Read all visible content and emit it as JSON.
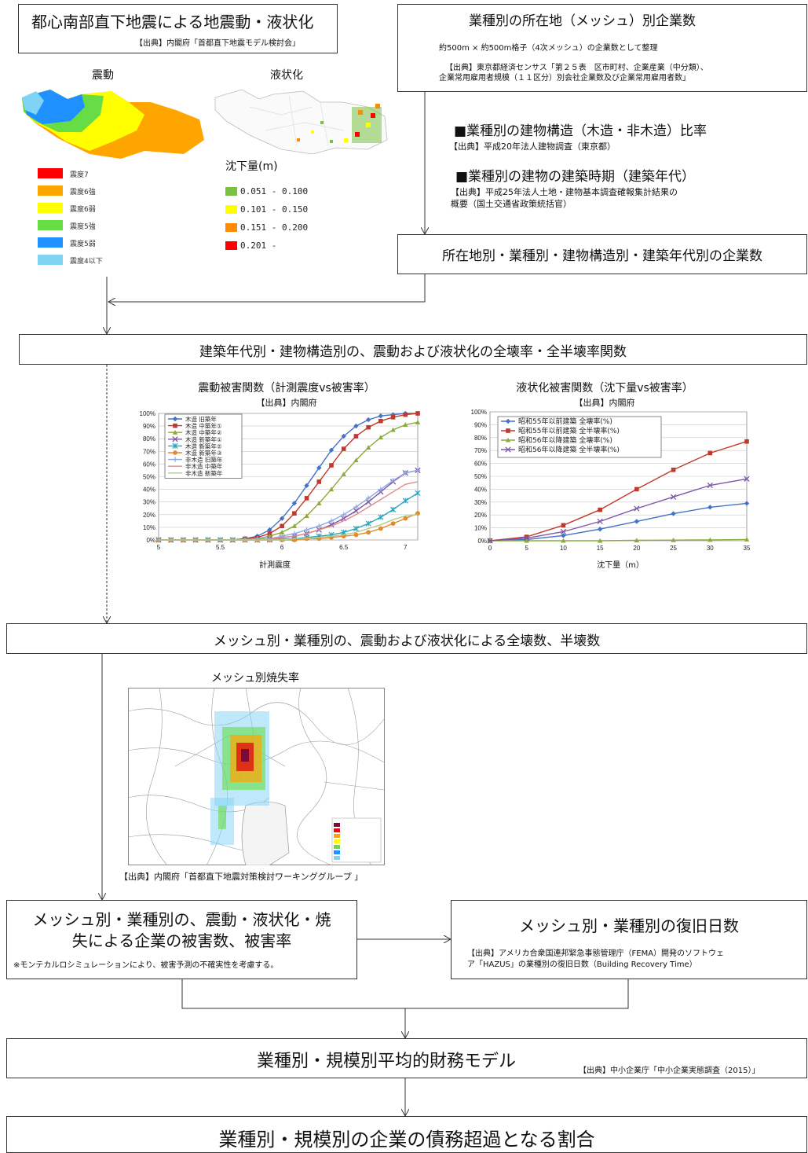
{
  "box1": {
    "title": "都心南部直下地震による地震動・液状化",
    "source": "【出典】内閣府「首都直下地震モデル検討会」"
  },
  "maps": {
    "shaking_label": "震動",
    "liquefaction_label": "液状化",
    "shaking_legend": [
      "震度7",
      "震度6強",
      "震度6弱",
      "震度5強",
      "震度5弱",
      "震度4以下"
    ],
    "shaking_colors": [
      "#ff0000",
      "#ffa500",
      "#ffff00",
      "#66dd44",
      "#1e90ff",
      "#7fd4f5"
    ],
    "liq_title": "沈下量(m)",
    "liq_legend": [
      "0.051 - 0.100",
      "0.101 - 0.150",
      "0.151 - 0.200",
      "0.201 -"
    ],
    "liq_colors": [
      "#7ac143",
      "#ffff00",
      "#ff8c00",
      "#ff0000"
    ]
  },
  "box2": {
    "title": "業種別の所在地（メッシュ）別企業数",
    "line1": "約500m × 約500m格子（4次メッシュ）の企業数として整理",
    "source1": "【出典】東京都経済センサス「第２５表　区市町村、企業産業（中分類）、",
    "source2": "企業常用雇用者規模（１１区分）別会社企業数及び企業常用雇用者数」"
  },
  "notes": {
    "n1_title": "■業種別の建物構造（木造・非木造）比率",
    "n1_source": "【出典】平成20年法人建物調査（東京都）",
    "n2_title": "■業種別の建物の建築時期（建築年代）",
    "n2_source1": "【出典】平成25年法人土地・建物基本調査確報集計結果の",
    "n2_source2": "概要（国土交通省政策統括官）"
  },
  "box3": {
    "title": "所在地別・業種別・建物構造別・建築年代別の企業数"
  },
  "box4": {
    "title": "建築年代別・建物構造別の、震動および液状化の全壊率・全半壊率関数"
  },
  "chart1": {
    "title": "震動被害関数（計測震度vs被害率）",
    "source": "【出典】内閣府",
    "xlabel": "計測震度"
  },
  "chart2": {
    "title": "液状化被害関数（沈下量vs被害率）",
    "source": "【出典】内閣府",
    "xlabel": "沈下量（m）"
  },
  "chart_data": [
    {
      "type": "line",
      "xlim": [
        5,
        7.1
      ],
      "ylim": [
        0,
        100
      ],
      "xticks": [
        5,
        5.5,
        6,
        6.5,
        7
      ],
      "yticks": [
        "0%",
        "10%",
        "20%",
        "30%",
        "40%",
        "50%",
        "60%",
        "70%",
        "80%",
        "90%",
        "100%"
      ],
      "x": [
        5,
        5.1,
        5.2,
        5.3,
        5.4,
        5.5,
        5.6,
        5.7,
        5.8,
        5.9,
        6,
        6.1,
        6.2,
        6.3,
        6.4,
        6.5,
        6.6,
        6.7,
        6.8,
        6.9,
        7,
        7.1
      ],
      "legend": "top-left",
      "series": [
        {
          "name": "木造 旧築年",
          "color": "#4472c4",
          "marker": "diamond",
          "values": [
            0,
            0,
            0,
            0,
            0,
            0,
            0,
            1,
            3,
            8,
            17,
            29,
            43,
            57,
            71,
            82,
            90,
            95,
            98,
            99,
            100,
            100
          ]
        },
        {
          "name": "木造 中築年①",
          "color": "#c0392b",
          "marker": "square",
          "values": [
            0,
            0,
            0,
            0,
            0,
            0,
            0,
            1,
            2,
            5,
            11,
            21,
            33,
            46,
            59,
            72,
            82,
            89,
            94,
            97,
            99,
            100
          ]
        },
        {
          "name": "木造 中築年②",
          "color": "#8aaa3a",
          "marker": "triangle",
          "values": [
            0,
            0,
            0,
            0,
            0,
            0,
            0,
            0,
            1,
            3,
            6,
            11,
            19,
            29,
            40,
            52,
            63,
            73,
            81,
            87,
            91,
            93
          ]
        },
        {
          "name": "木造 新築年①",
          "color": "#7e57a8",
          "marker": "x",
          "values": [
            0,
            0,
            0,
            0,
            0,
            0,
            0,
            0,
            0,
            1,
            2,
            3,
            5,
            8,
            12,
            17,
            23,
            30,
            38,
            46,
            53,
            55
          ]
        },
        {
          "name": "木造 新築年②",
          "color": "#2aa5c0",
          "marker": "star",
          "values": [
            0,
            0,
            0,
            0,
            0,
            0,
            0,
            0,
            0,
            0,
            1,
            1,
            2,
            3,
            4,
            6,
            9,
            13,
            18,
            24,
            31,
            37
          ]
        },
        {
          "name": "木造 新築年③",
          "color": "#e08a2c",
          "marker": "circle",
          "values": [
            0,
            0,
            0,
            0,
            0,
            0,
            0,
            0,
            0,
            0,
            0,
            0,
            1,
            1,
            2,
            3,
            4,
            6,
            9,
            13,
            17,
            21
          ]
        },
        {
          "name": "非木造 旧築年",
          "color": "#8fa8e0",
          "marker": "plus",
          "values": [
            0,
            0,
            0,
            0,
            0,
            0,
            0,
            0,
            1,
            1,
            3,
            5,
            8,
            11,
            15,
            20,
            26,
            33,
            40,
            47,
            53,
            55
          ]
        },
        {
          "name": "非木造 中築年",
          "color": "#e08a8a",
          "marker": "none",
          "values": [
            0,
            0,
            0,
            0,
            0,
            0,
            0,
            0,
            0,
            1,
            2,
            3,
            5,
            8,
            11,
            15,
            20,
            26,
            32,
            38,
            44,
            46
          ]
        },
        {
          "name": "非木造 新築年",
          "color": "#b5c98a",
          "marker": "none",
          "values": [
            0,
            0,
            0,
            0,
            0,
            0,
            0,
            0,
            0,
            0,
            0,
            1,
            1,
            2,
            3,
            4,
            6,
            9,
            12,
            16,
            19,
            20
          ]
        }
      ]
    },
    {
      "type": "line",
      "xlim": [
        0,
        35
      ],
      "ylim": [
        0,
        100
      ],
      "xticks": [
        0,
        5,
        10,
        15,
        20,
        25,
        30,
        35
      ],
      "yticks": [
        "0%",
        "10%",
        "20%",
        "30%",
        "40%",
        "50%",
        "60%",
        "70%",
        "80%",
        "90%",
        "100%"
      ],
      "x": [
        0,
        5,
        10,
        15,
        20,
        25,
        30,
        35
      ],
      "legend": "top-left",
      "series": [
        {
          "name": "昭和55年以前建築 全壊率(%)",
          "color": "#4472c4",
          "marker": "diamond",
          "values": [
            0,
            1,
            4,
            9,
            15,
            21,
            26,
            29
          ]
        },
        {
          "name": "昭和55年以前建築 全半壊率(%)",
          "color": "#c0392b",
          "marker": "square",
          "values": [
            0,
            3,
            12,
            24,
            40,
            55,
            68,
            77
          ]
        },
        {
          "name": "昭和56年以降建築 全壊率(%)",
          "color": "#8aaa3a",
          "marker": "triangle",
          "values": [
            0,
            0,
            0,
            0,
            0.3,
            0.5,
            0.7,
            1
          ]
        },
        {
          "name": "昭和56年以降建築 全半壊率(%)",
          "color": "#7e57a8",
          "marker": "x",
          "values": [
            0,
            2,
            7,
            15,
            25,
            34,
            43,
            48
          ]
        }
      ]
    }
  ],
  "box5": {
    "title": "メッシュ別・業種別の、震動および液状化による全壊数、半壊数"
  },
  "burnmap": {
    "title": "メッシュ別焼失率",
    "source": "【出典】内閣府「首都直下地震対策検討ワーキンググループ 」"
  },
  "box6": {
    "line1": "メッシュ別・業種別の、震動・液状化・焼",
    "line2": "失による企業の被害数、被害率",
    "note": "※モンテカルロシミュレーションにより、被害予測の不確実性を考慮する。"
  },
  "box7": {
    "title": "メッシュ別・業種別の復旧日数",
    "source1": "【出典】アメリカ合衆国連邦緊急事態管理庁（FEMA）開発のソフトウェ",
    "source2": "ア「HAZUS」の業種別の復旧日数（Building Recovery Time）"
  },
  "box8": {
    "title": "業種別・規模別平均的財務モデル",
    "source": "【出典】中小企業庁「中小企業実態調査（2015）」"
  },
  "box9": {
    "title": "業種別・規模別の企業の債務超過となる割合"
  }
}
